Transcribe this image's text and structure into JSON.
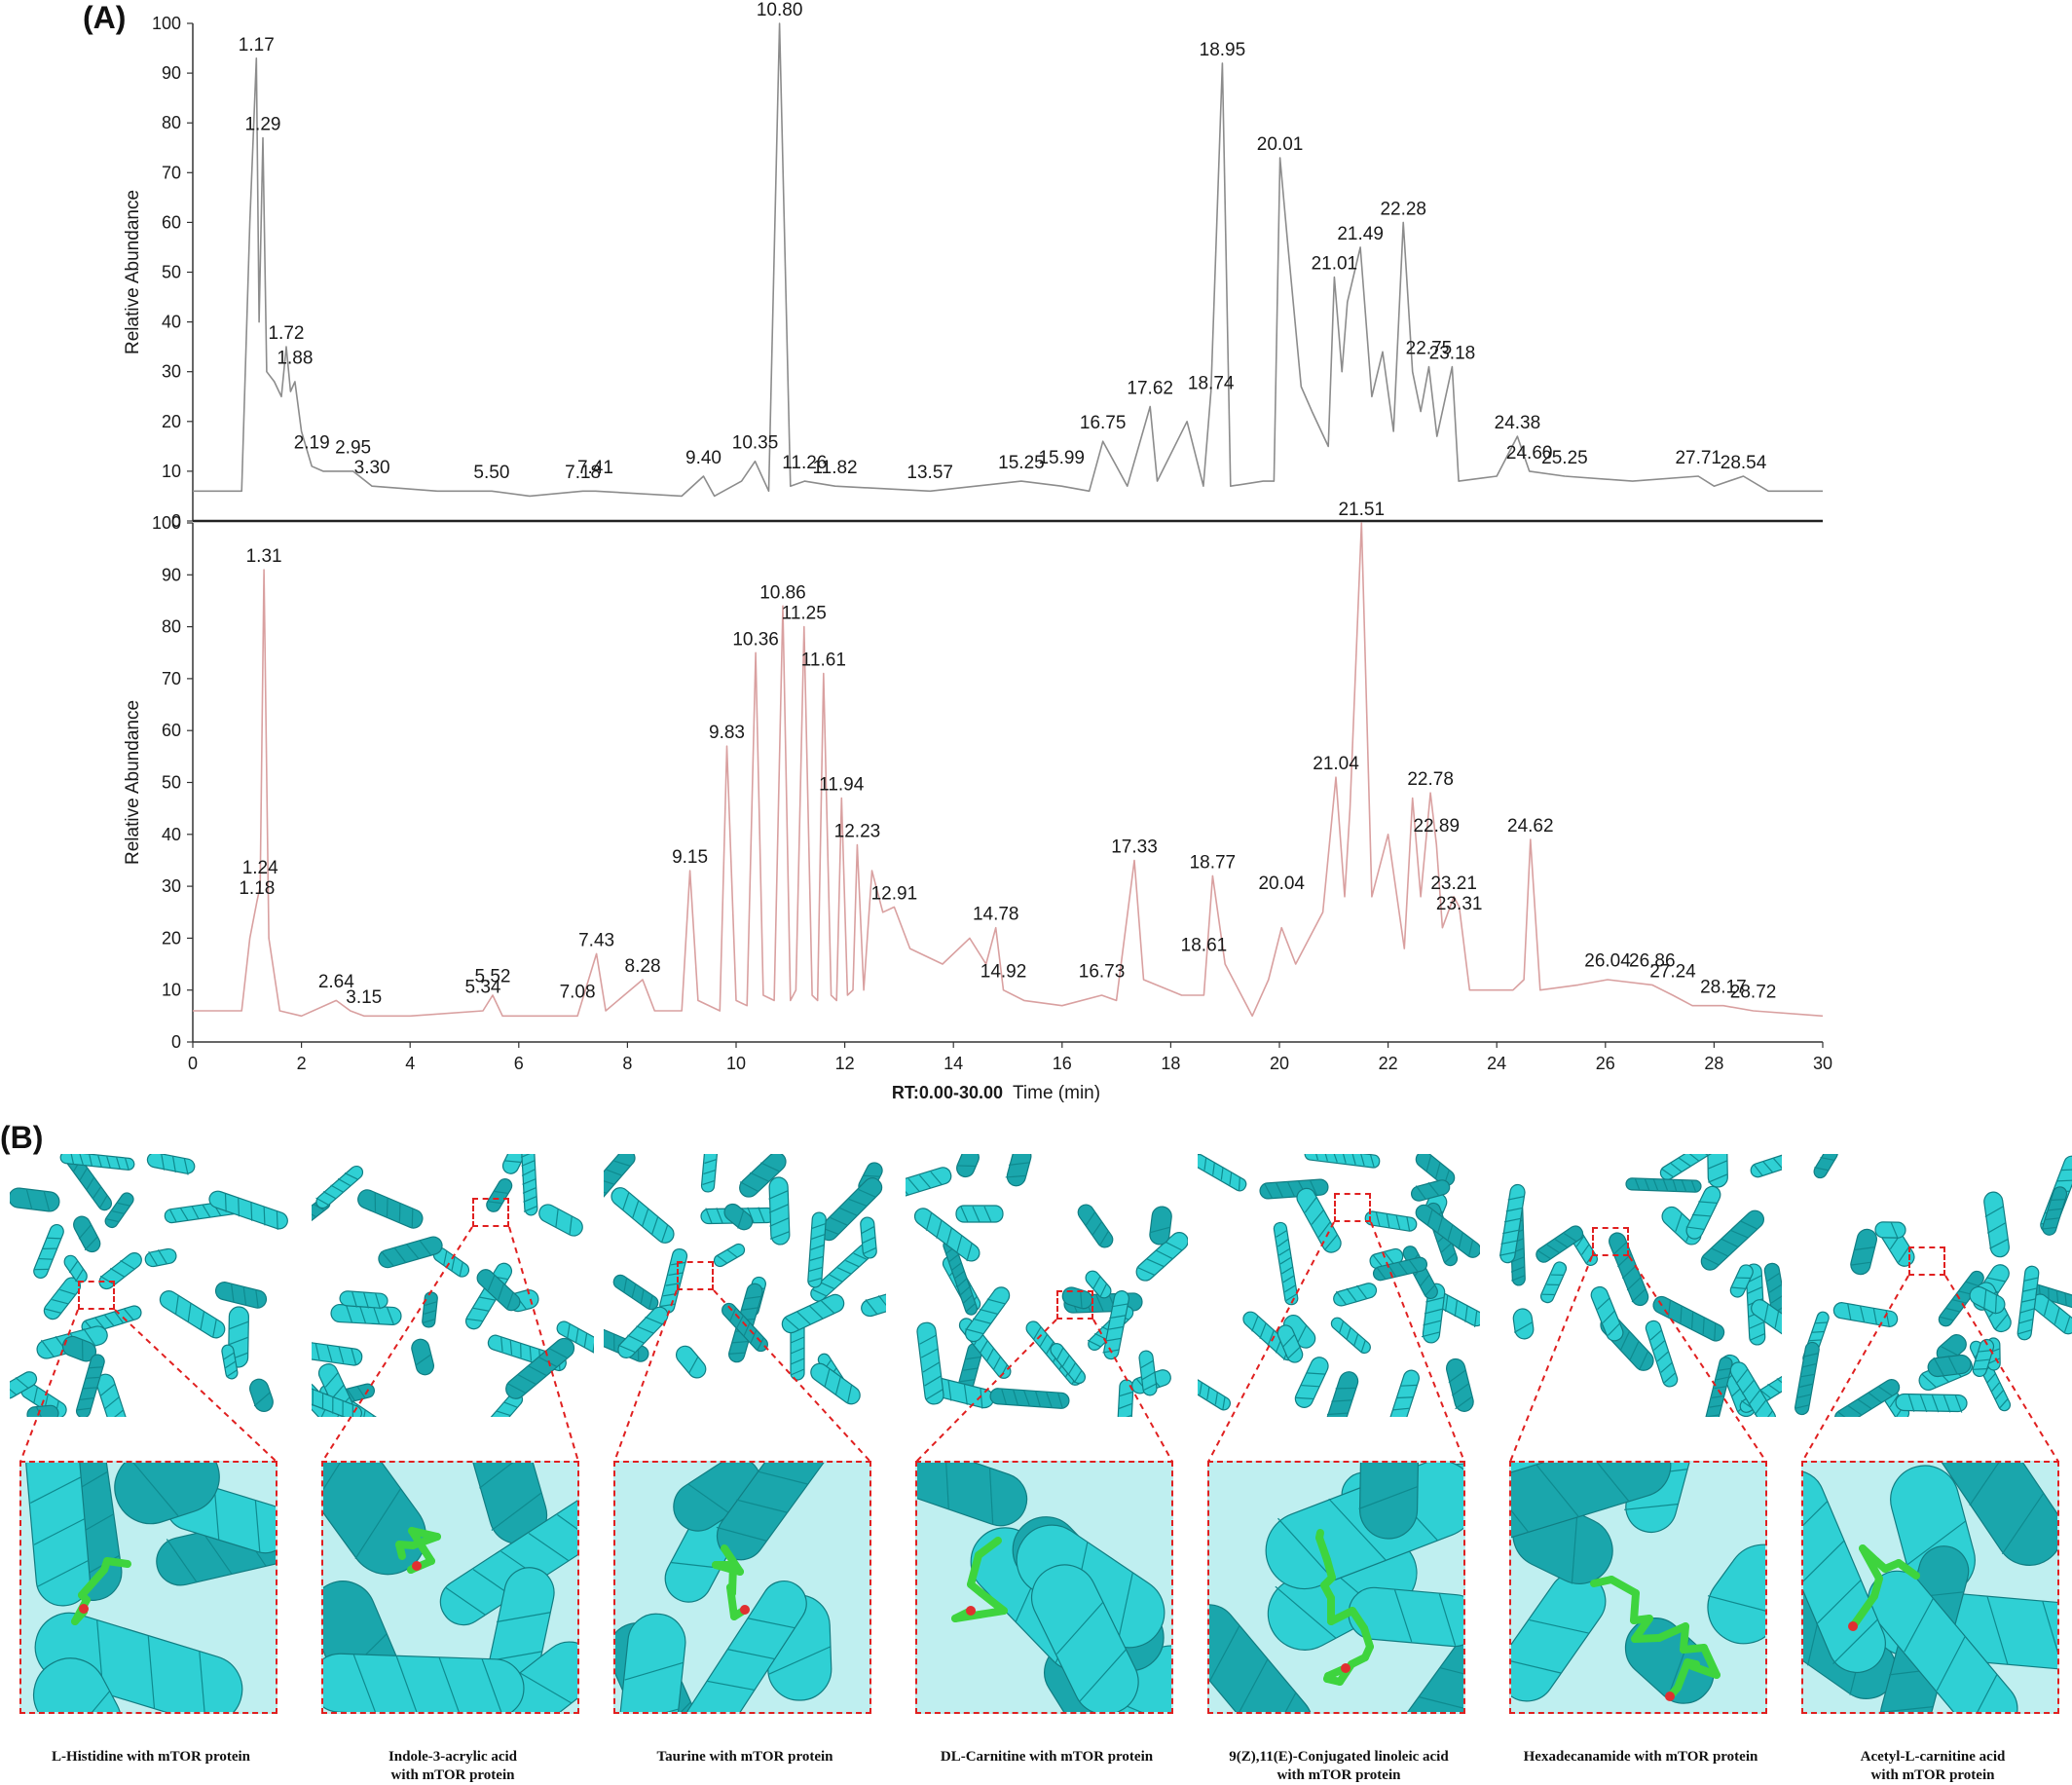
{
  "panels": {
    "a_label": "(A)",
    "b_label": "(B)"
  },
  "chart_data": [
    {
      "type": "line",
      "ylabel": "Relative Abundance",
      "ylim": [
        0,
        100
      ],
      "xlim": [
        0,
        30
      ],
      "y_ticks": [
        "0",
        "10",
        "20",
        "30",
        "40",
        "50",
        "60",
        "70",
        "80",
        "90",
        "100"
      ],
      "color": "#8c8c8c",
      "series": [
        {
          "x": [
            0,
            0.9,
            1.05,
            1.17,
            1.22,
            1.29,
            1.36,
            1.5,
            1.63,
            1.72,
            1.8,
            1.88,
            2.0,
            2.19,
            2.4,
            2.95,
            3.3,
            4.5,
            5.5,
            6.2,
            7.18,
            7.41,
            9.0,
            9.4,
            9.6,
            10.1,
            10.35,
            10.6,
            10.8,
            11.0,
            11.26,
            11.82,
            13.57,
            15.25,
            15.99,
            16.5,
            16.75,
            17.2,
            17.62,
            17.75,
            18.3,
            18.6,
            18.74,
            18.95,
            19.1,
            19.7,
            19.9,
            20.01,
            20.15,
            20.4,
            20.6,
            20.9,
            21.01,
            21.15,
            21.25,
            21.49,
            21.7,
            21.9,
            22.1,
            22.28,
            22.45,
            22.6,
            22.75,
            22.9,
            23.18,
            23.3,
            24.0,
            24.38,
            24.6,
            25.25,
            26.5,
            27.71,
            28.0,
            28.54,
            29.0,
            30
          ],
          "y": [
            6,
            6,
            60,
            93,
            40,
            77,
            30,
            28,
            25,
            35,
            26,
            28,
            18,
            11,
            10,
            10,
            7,
            6,
            6,
            5,
            6,
            6,
            5,
            9,
            5,
            8,
            12,
            6,
            100,
            7,
            8,
            7,
            6,
            8,
            7,
            6,
            16,
            7,
            23,
            8,
            20,
            7,
            26,
            92,
            7,
            8,
            8,
            73,
            56,
            27,
            22,
            15,
            49,
            30,
            44,
            55,
            25,
            34,
            18,
            60,
            30,
            22,
            31,
            17,
            31,
            8,
            9,
            17,
            10,
            9,
            8,
            9,
            7,
            9,
            6,
            6
          ]
        }
      ],
      "peak_labels": [
        {
          "x": 1.17,
          "y": 93,
          "label": "1.17"
        },
        {
          "x": 1.29,
          "y": 77,
          "label": "1.29"
        },
        {
          "x": 1.72,
          "y": 35,
          "label": "1.72"
        },
        {
          "x": 1.88,
          "y": 30,
          "label": "1.88"
        },
        {
          "x": 2.19,
          "y": 13,
          "label": "2.19"
        },
        {
          "x": 2.95,
          "y": 12,
          "label": "2.95"
        },
        {
          "x": 3.3,
          "y": 8,
          "label": "3.30"
        },
        {
          "x": 5.5,
          "y": 7,
          "label": "5.50"
        },
        {
          "x": 7.18,
          "y": 7,
          "label": "7.18"
        },
        {
          "x": 7.41,
          "y": 8,
          "label": "7.41"
        },
        {
          "x": 9.4,
          "y": 10,
          "label": "9.40"
        },
        {
          "x": 10.35,
          "y": 13,
          "label": "10.35"
        },
        {
          "x": 10.8,
          "y": 100,
          "label": "10.80"
        },
        {
          "x": 11.26,
          "y": 9,
          "label": "11.26"
        },
        {
          "x": 11.82,
          "y": 8,
          "label": "11.82"
        },
        {
          "x": 13.57,
          "y": 7,
          "label": "13.57"
        },
        {
          "x": 15.25,
          "y": 9,
          "label": "15.25"
        },
        {
          "x": 15.99,
          "y": 10,
          "label": "15.99"
        },
        {
          "x": 16.75,
          "y": 17,
          "label": "16.75"
        },
        {
          "x": 17.62,
          "y": 24,
          "label": "17.62"
        },
        {
          "x": 18.74,
          "y": 25,
          "label": "18.74"
        },
        {
          "x": 18.95,
          "y": 92,
          "label": "18.95"
        },
        {
          "x": 20.01,
          "y": 73,
          "label": "20.01"
        },
        {
          "x": 21.01,
          "y": 49,
          "label": "21.01"
        },
        {
          "x": 21.49,
          "y": 55,
          "label": "21.49"
        },
        {
          "x": 22.28,
          "y": 60,
          "label": "22.28"
        },
        {
          "x": 22.75,
          "y": 32,
          "label": "22.75"
        },
        {
          "x": 23.18,
          "y": 31,
          "label": "23.18"
        },
        {
          "x": 24.38,
          "y": 17,
          "label": "24.38"
        },
        {
          "x": 24.6,
          "y": 11,
          "label": "24.60"
        },
        {
          "x": 25.25,
          "y": 10,
          "label": "25.25"
        },
        {
          "x": 27.71,
          "y": 10,
          "label": "27.71"
        },
        {
          "x": 28.54,
          "y": 9,
          "label": "28.54"
        }
      ]
    },
    {
      "type": "line",
      "ylabel": "Relative Abundance",
      "xlabel": "Time (min)",
      "x_range_label": "RT:0.00-30.00",
      "ylim": [
        0,
        100
      ],
      "xlim": [
        0,
        30
      ],
      "x_ticks": [
        "0",
        "2",
        "4",
        "6",
        "8",
        "10",
        "12",
        "14",
        "16",
        "18",
        "20",
        "22",
        "24",
        "26",
        "28",
        "30"
      ],
      "y_ticks": [
        "0",
        "10",
        "20",
        "30",
        "40",
        "50",
        "60",
        "70",
        "80",
        "90",
        "100"
      ],
      "color": "#d9a0a0",
      "series": [
        {
          "x": [
            0,
            0.9,
            1.05,
            1.18,
            1.24,
            1.31,
            1.4,
            1.6,
            2.0,
            2.64,
            2.9,
            3.15,
            4.0,
            5.34,
            5.52,
            5.7,
            7.08,
            7.43,
            7.6,
            8.28,
            8.5,
            9.0,
            9.15,
            9.3,
            9.7,
            9.83,
            10.0,
            10.2,
            10.36,
            10.5,
            10.7,
            10.86,
            11.0,
            11.1,
            11.25,
            11.4,
            11.5,
            11.61,
            11.75,
            11.85,
            11.94,
            12.05,
            12.15,
            12.23,
            12.35,
            12.5,
            12.7,
            12.91,
            13.2,
            13.8,
            14.3,
            14.6,
            14.78,
            14.92,
            15.3,
            16.0,
            16.73,
            17.0,
            17.33,
            17.5,
            18.2,
            18.61,
            18.77,
            19.0,
            19.5,
            19.8,
            20.04,
            20.3,
            20.8,
            21.04,
            21.2,
            21.3,
            21.51,
            21.7,
            22.0,
            22.3,
            22.45,
            22.6,
            22.78,
            22.89,
            23.0,
            23.21,
            23.31,
            23.5,
            24.3,
            24.5,
            24.62,
            24.8,
            25.5,
            26.04,
            26.86,
            27.24,
            27.6,
            28.17,
            28.72,
            30
          ],
          "y": [
            6,
            6,
            20,
            27,
            30,
            91,
            20,
            6,
            5,
            8,
            6,
            5,
            5,
            6,
            9,
            5,
            5,
            17,
            6,
            12,
            6,
            6,
            33,
            8,
            6,
            57,
            8,
            7,
            75,
            9,
            8,
            84,
            8,
            10,
            80,
            9,
            8,
            71,
            9,
            8,
            47,
            9,
            10,
            38,
            10,
            33,
            25,
            26,
            18,
            15,
            20,
            15,
            22,
            10,
            8,
            7,
            9,
            8,
            35,
            12,
            9,
            9,
            32,
            15,
            5,
            12,
            22,
            15,
            25,
            51,
            28,
            45,
            100,
            28,
            40,
            18,
            47,
            28,
            48,
            38,
            22,
            28,
            26,
            10,
            10,
            12,
            39,
            10,
            11,
            12,
            11,
            9,
            7,
            7,
            6,
            5
          ]
        }
      ],
      "peak_labels": [
        {
          "x": 1.18,
          "y": 27,
          "label": "1.18"
        },
        {
          "x": 1.24,
          "y": 31,
          "label": "1.24"
        },
        {
          "x": 1.31,
          "y": 91,
          "label": "1.31"
        },
        {
          "x": 2.64,
          "y": 9,
          "label": "2.64"
        },
        {
          "x": 3.15,
          "y": 6,
          "label": "3.15"
        },
        {
          "x": 5.34,
          "y": 8,
          "label": "5.34"
        },
        {
          "x": 5.52,
          "y": 10,
          "label": "5.52"
        },
        {
          "x": 7.08,
          "y": 7,
          "label": "7.08"
        },
        {
          "x": 7.43,
          "y": 17,
          "label": "7.43"
        },
        {
          "x": 8.28,
          "y": 12,
          "label": "8.28"
        },
        {
          "x": 9.15,
          "y": 33,
          "label": "9.15"
        },
        {
          "x": 9.83,
          "y": 57,
          "label": "9.83"
        },
        {
          "x": 10.36,
          "y": 75,
          "label": "10.36"
        },
        {
          "x": 10.86,
          "y": 84,
          "label": "10.86"
        },
        {
          "x": 11.25,
          "y": 80,
          "label": "11.25"
        },
        {
          "x": 11.61,
          "y": 71,
          "label": "11.61"
        },
        {
          "x": 11.94,
          "y": 47,
          "label": "11.94"
        },
        {
          "x": 12.23,
          "y": 38,
          "label": "12.23"
        },
        {
          "x": 12.91,
          "y": 26,
          "label": "12.91"
        },
        {
          "x": 14.78,
          "y": 22,
          "label": "14.78"
        },
        {
          "x": 14.92,
          "y": 11,
          "label": "14.92"
        },
        {
          "x": 16.73,
          "y": 11,
          "label": "16.73"
        },
        {
          "x": 17.33,
          "y": 35,
          "label": "17.33"
        },
        {
          "x": 18.61,
          "y": 16,
          "label": "18.61"
        },
        {
          "x": 18.77,
          "y": 32,
          "label": "18.77"
        },
        {
          "x": 20.04,
          "y": 28,
          "label": "20.04"
        },
        {
          "x": 21.04,
          "y": 51,
          "label": "21.04"
        },
        {
          "x": 21.51,
          "y": 100,
          "label": "21.51"
        },
        {
          "x": 22.78,
          "y": 48,
          "label": "22.78"
        },
        {
          "x": 22.89,
          "y": 39,
          "label": "22.89"
        },
        {
          "x": 23.21,
          "y": 28,
          "label": "23.21"
        },
        {
          "x": 23.31,
          "y": 24,
          "label": "23.31"
        },
        {
          "x": 24.62,
          "y": 39,
          "label": "24.62"
        },
        {
          "x": 26.04,
          "y": 13,
          "label": "26.04"
        },
        {
          "x": 26.86,
          "y": 13,
          "label": "26.86"
        },
        {
          "x": 27.24,
          "y": 11,
          "label": "27.24"
        },
        {
          "x": 28.17,
          "y": 8,
          "label": "28.17"
        },
        {
          "x": 28.72,
          "y": 7,
          "label": "28.72"
        }
      ]
    }
  ],
  "docking": {
    "protein_color": "#2fd0d4",
    "ligand_color": "#3ed43e",
    "box_color": "#e02020",
    "items": [
      {
        "caption_line1": "L-Histidine with mTOR protein",
        "caption_line2": ""
      },
      {
        "caption_line1": "Indole-3-acrylic acid",
        "caption_line2": "with mTOR protein"
      },
      {
        "caption_line1": "Taurine with mTOR protein",
        "caption_line2": ""
      },
      {
        "caption_line1": "DL-Carnitine with mTOR protein",
        "caption_line2": ""
      },
      {
        "caption_line1": "9(Z),11(E)-Conjugated linoleic acid",
        "caption_line2": "with mTOR protein"
      },
      {
        "caption_line1": "Hexadecanamide with mTOR protein",
        "caption_line2": ""
      },
      {
        "caption_line1": "Acetyl-L-carnitine acid",
        "caption_line2": "with mTOR protein"
      }
    ]
  }
}
